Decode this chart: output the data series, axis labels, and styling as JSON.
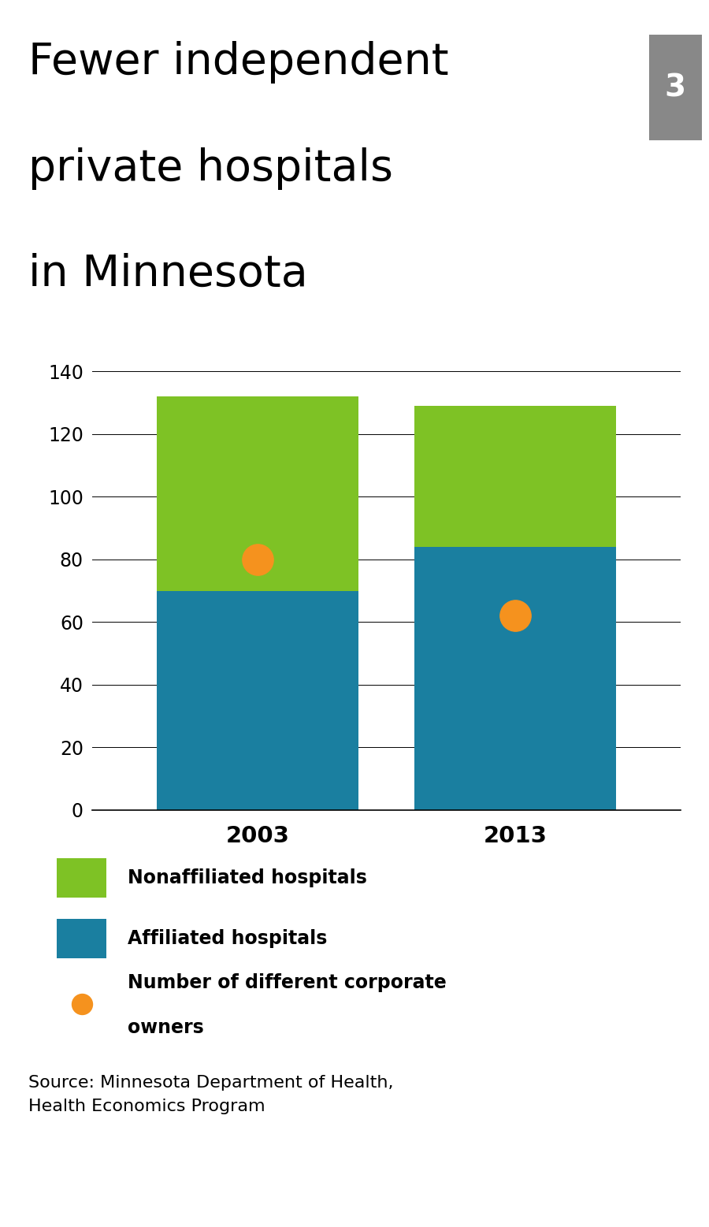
{
  "title_line1": "Fewer independent",
  "title_line2": "private hospitals",
  "title_line3": "in Minnesota",
  "badge_number": "3",
  "badge_color": "#888888",
  "years": [
    "2003",
    "2013"
  ],
  "affiliated": [
    70,
    84
  ],
  "nonaffiliated": [
    62,
    45
  ],
  "corporate_owners": [
    80,
    62
  ],
  "color_affiliated": "#1a7fa0",
  "color_nonaffiliated": "#7ec225",
  "color_corporate": "#f5921e",
  "ylim": [
    0,
    145
  ],
  "yticks": [
    0,
    20,
    40,
    60,
    80,
    100,
    120,
    140
  ],
  "title_fontsize": 40,
  "tick_fontsize": 17,
  "xtick_fontsize": 21,
  "legend_fontsize": 17,
  "source_fontsize": 16,
  "source_text": "Source: Minnesota Department of Health,\nHealth Economics Program",
  "legend_labels": [
    "Nonaffiliated hospitals",
    "Affiliated hospitals",
    "Number of different corporate owners"
  ],
  "bar_width": 0.55,
  "bar_positions": [
    0,
    1
  ],
  "bar_gap": 0.7
}
